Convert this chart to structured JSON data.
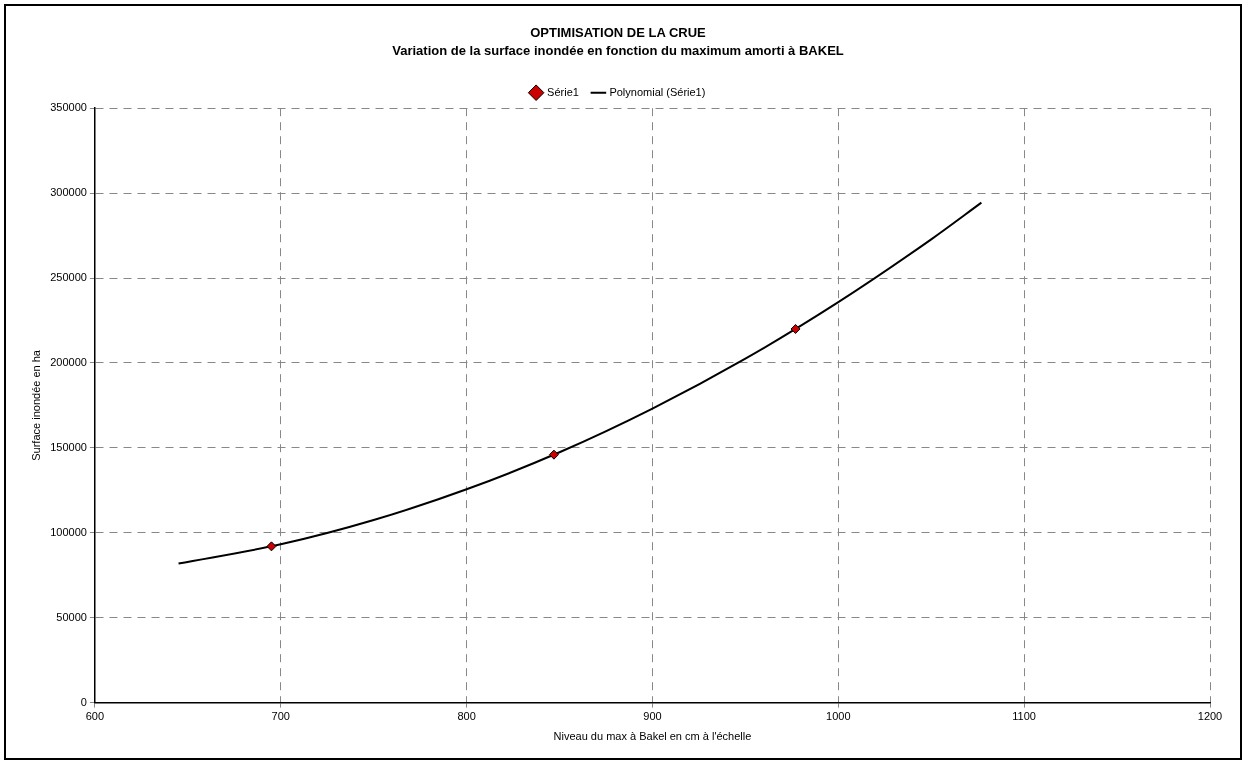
{
  "chart_data": {
    "type": "scatter",
    "title": "OPTIMISATION DE LA CRUE",
    "subtitle": "Variation de la surface inondée en fonction du maximum amorti à BAKEL",
    "xlabel": "Niveau du max à Bakel en cm à l'échelle",
    "ylabel": "Surface inondée en ha",
    "series": [
      {
        "name": "Série1",
        "marker": "diamond",
        "color": "#cc0000",
        "x": [
          695,
          847,
          977
        ],
        "values": [
          92000,
          146000,
          220000
        ]
      },
      {
        "name": "Polynomial (Série1)",
        "type": "line",
        "marker": "none",
        "color": "#000000",
        "x": [
          645,
          700,
          750,
          800,
          850,
          900,
          950,
          1000,
          1050,
          1077
        ],
        "values": [
          81900,
          93200,
          107500,
          125600,
          147400,
          173100,
          202500,
          235800,
          272800,
          294400
        ]
      }
    ],
    "xlim": [
      600,
      1200
    ],
    "xticks": [
      600,
      700,
      800,
      900,
      1000,
      1100,
      1200
    ],
    "ylim": [
      0,
      350000
    ],
    "yticks": [
      0,
      50000,
      100000,
      150000,
      200000,
      250000,
      300000,
      350000
    ],
    "grid": true,
    "legend": "top",
    "line_style": "solid"
  }
}
